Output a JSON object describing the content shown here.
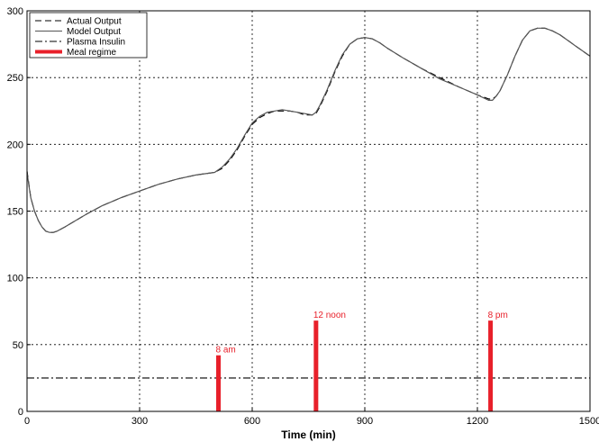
{
  "chart_data": {
    "type": "line",
    "title": "",
    "xlabel": "Time (min)",
    "ylabel": "",
    "xlim": [
      0,
      1500
    ],
    "ylim": [
      0,
      300
    ],
    "xticks": [
      0,
      300,
      600,
      900,
      1200,
      1500
    ],
    "yticks": [
      0,
      50,
      100,
      150,
      200,
      250,
      300
    ],
    "grid": true,
    "legend_position": "top-left",
    "series": [
      {
        "name": "Actual Output",
        "style": "dashed",
        "color": "#000000",
        "x": [
          0,
          5,
          10,
          20,
          30,
          40,
          50,
          60,
          70,
          80,
          100,
          130,
          160,
          200,
          250,
          300,
          350,
          400,
          450,
          500,
          520,
          540,
          560,
          580,
          600,
          620,
          640,
          660,
          680,
          700,
          720,
          740,
          760,
          770,
          780,
          800,
          820,
          840,
          860,
          880,
          900,
          920,
          940,
          960,
          1000,
          1050,
          1100,
          1150,
          1200,
          1230,
          1240,
          1250,
          1260,
          1280,
          1300,
          1320,
          1340,
          1360,
          1380,
          1400,
          1420,
          1440,
          1460,
          1480,
          1500
        ],
        "y": [
          180,
          170,
          160,
          150,
          143,
          138,
          135,
          134,
          134,
          135,
          138,
          143,
          148,
          154,
          160,
          165,
          170,
          174,
          177,
          179,
          182,
          188,
          196,
          206,
          215,
          220,
          223,
          225,
          225,
          225,
          224,
          222,
          222,
          223,
          228,
          240,
          254,
          266,
          275,
          279,
          280,
          279,
          276,
          272,
          265,
          257,
          250,
          243,
          237,
          234,
          234,
          236,
          240,
          252,
          266,
          278,
          285,
          287,
          287,
          285,
          282,
          278,
          274,
          270,
          266
        ]
      },
      {
        "name": "Model Output",
        "style": "solid",
        "color": "#555555",
        "x": [
          0,
          5,
          10,
          20,
          30,
          40,
          50,
          60,
          70,
          80,
          100,
          130,
          160,
          200,
          250,
          300,
          350,
          400,
          450,
          500,
          520,
          540,
          560,
          580,
          600,
          620,
          640,
          660,
          680,
          700,
          720,
          740,
          760,
          770,
          780,
          800,
          820,
          840,
          860,
          880,
          900,
          920,
          940,
          960,
          1000,
          1050,
          1100,
          1150,
          1200,
          1230,
          1240,
          1250,
          1260,
          1280,
          1300,
          1320,
          1340,
          1360,
          1380,
          1400,
          1420,
          1440,
          1460,
          1480,
          1500
        ],
        "y": [
          179,
          169,
          160,
          150,
          143,
          138,
          135,
          134,
          134,
          135,
          138,
          143,
          148,
          154,
          160,
          165,
          170,
          174,
          177,
          179,
          183,
          189,
          197,
          207,
          216,
          221,
          224,
          225,
          226,
          225,
          224,
          223,
          222,
          224,
          229,
          241,
          255,
          267,
          275,
          279,
          280,
          279,
          276,
          272,
          265,
          257,
          249,
          243,
          237,
          233,
          233,
          236,
          240,
          252,
          266,
          278,
          285,
          287,
          287,
          285,
          282,
          278,
          274,
          270,
          266
        ]
      },
      {
        "name": "Plasma Insulin",
        "style": "dashdot",
        "color": "#000000",
        "x": [
          0,
          1500
        ],
        "y": [
          25,
          25
        ]
      },
      {
        "name": "Meal regime",
        "style": "bar",
        "color": "#e8202a",
        "x": [
          510,
          770,
          1235
        ],
        "y": [
          42,
          68,
          68
        ],
        "labels": [
          "8 am",
          "12 noon",
          "8 pm"
        ]
      }
    ]
  }
}
